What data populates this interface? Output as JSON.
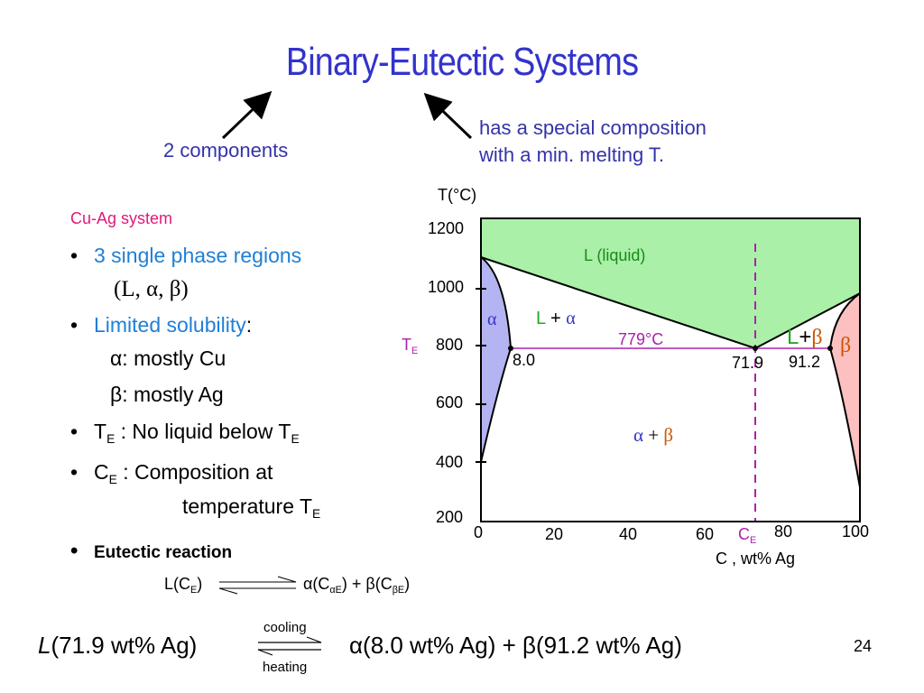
{
  "slide": {
    "title": "Binary-Eutectic Systems",
    "annot_left": "2 components",
    "annot_right_1": "has a special composition",
    "annot_right_2": "with a min. melting T.",
    "system_label": "Cu-Ag system",
    "b1_text": "3 single phase regions",
    "b1_line2": "(L, α, β)",
    "b2_text": "Limited solubility",
    "b2_colon": ":",
    "b2_alpha": "α:  mostly Cu",
    "b2_beta": "β:  mostly Ag",
    "b3_T": "T",
    "b3_E": "E",
    "b3_text": " :  No liquid below T",
    "b3_E2": "E",
    "b4_C": "C",
    "b4_E": "E",
    "b4_text": " :  Composition at",
    "b4_line2": "temperature T",
    "b4_E2": "E",
    "b5_text": "Eutectic reaction",
    "reaction_left": "L(C",
    "reaction_left_sub": "E",
    "reaction_left_close": ")",
    "reaction_right": "α(C",
    "reaction_right_sub1": "αE",
    "reaction_right_mid": ") + β(C",
    "reaction_right_sub2": "βE",
    "reaction_right_close": ")",
    "bottom_L": "L",
    "bottom_left": "(71.9 wt% Ag)",
    "bottom_cooling": "cooling",
    "bottom_heating": "heating",
    "bottom_right": "α(8.0 wt% Ag) + β(91.2 wt% Ag)",
    "slide_number": "24"
  },
  "diagram": {
    "y_axis_title": "T(°C)",
    "y_ticks": [
      "1200",
      "1000",
      "800",
      "600",
      "400",
      "200"
    ],
    "x_ticks": [
      "0",
      "20",
      "40",
      "60",
      "80",
      "100"
    ],
    "x_axis_title": "C  ,  wt% Ag",
    "TE_T": "T",
    "TE_E": "E",
    "CE_C": "C",
    "CE_E": "E",
    "eutectic_temp_label": "779°C",
    "comp_alpha": "8.0",
    "comp_eutectic": "71.9",
    "comp_beta": "91.2",
    "region_liquid": "L (liquid)",
    "region_alpha": "α",
    "region_L_alpha_L": "L",
    "region_L_alpha_plus": "+",
    "region_L_alpha_alpha": "α",
    "region_L_beta_L": "L",
    "region_L_beta_plus": "+",
    "region_L_beta_beta": "β",
    "region_beta": "β",
    "region_alpha_beta_alpha": "α",
    "region_alpha_beta_plus": "+",
    "region_alpha_beta_beta": "β",
    "colors": {
      "liquid": "#aaf0a8",
      "alpha": "#b4b4f2",
      "beta": "#fcc0c0",
      "eutectic_line": "#aa22aa",
      "title": "#3333cc"
    }
  }
}
